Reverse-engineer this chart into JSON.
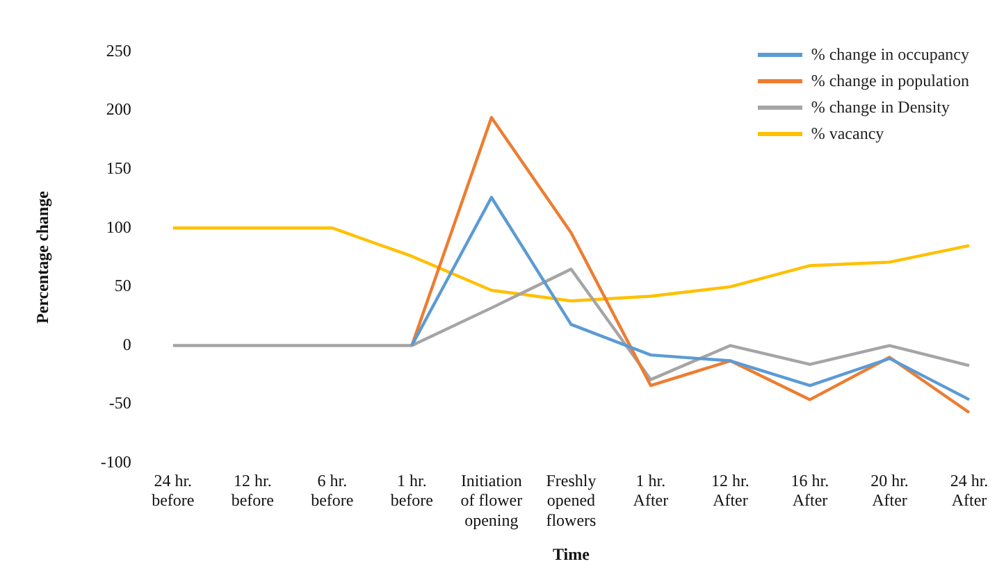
{
  "chart_data": {
    "type": "line",
    "xlabel": "Time",
    "ylabel": "Percentage change",
    "categories": [
      "24 hr. before",
      "12 hr. before",
      "6 hr. before",
      "1 hr. before",
      "Initiation of flower opening",
      "Freshly opened flowers",
      "1 hr. After",
      "12 hr. After",
      "16 hr. After",
      "20 hr. After",
      "24 hr. After"
    ],
    "series": [
      {
        "name": "% change in occupancy",
        "color": "#5b9bd5",
        "values": [
          null,
          null,
          null,
          0,
          126,
          18,
          -8,
          -13,
          -34,
          -11,
          -46
        ]
      },
      {
        "name": "% change in population",
        "color": "#ed7d31",
        "values": [
          null,
          null,
          null,
          0,
          194,
          96,
          -34,
          -13,
          -46,
          -10,
          -57
        ]
      },
      {
        "name": "% change in Density",
        "color": "#a5a5a5",
        "values": [
          0,
          0,
          0,
          0,
          32,
          65,
          -29,
          0,
          -16,
          0,
          -17
        ]
      },
      {
        "name": "% vacancy",
        "color": "#ffc000",
        "values": [
          100,
          100,
          100,
          76,
          47,
          38,
          42,
          50,
          68,
          71,
          85
        ]
      }
    ],
    "ylim": [
      -100,
      250
    ],
    "yticks": [
      -100,
      -50,
      0,
      50,
      100,
      150,
      200,
      250
    ],
    "grid": false,
    "legend": "top right",
    "marker": "none",
    "line_style": "solid"
  }
}
